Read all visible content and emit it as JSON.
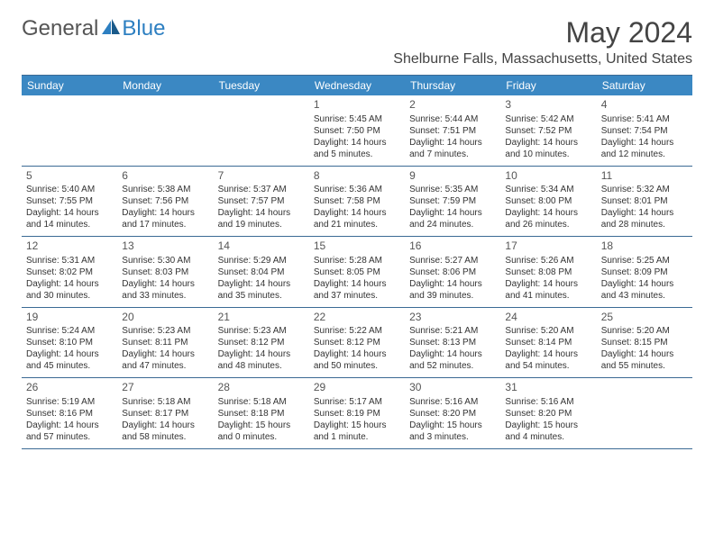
{
  "logo": {
    "text1": "General",
    "text2": "Blue"
  },
  "header": {
    "month_title": "May 2024",
    "location": "Shelburne Falls, Massachusetts, United States"
  },
  "colors": {
    "header_bg": "#3b88c3",
    "header_text": "#ffffff",
    "border": "#3b6a94",
    "body_text": "#333333",
    "logo_gray": "#555555",
    "logo_blue": "#2d7fc1"
  },
  "weekdays": [
    "Sunday",
    "Monday",
    "Tuesday",
    "Wednesday",
    "Thursday",
    "Friday",
    "Saturday"
  ],
  "weeks": [
    [
      null,
      null,
      null,
      {
        "num": "1",
        "sunrise": "5:45 AM",
        "sunset": "7:50 PM",
        "daylight1": "Daylight: 14 hours",
        "daylight2": "and 5 minutes."
      },
      {
        "num": "2",
        "sunrise": "5:44 AM",
        "sunset": "7:51 PM",
        "daylight1": "Daylight: 14 hours",
        "daylight2": "and 7 minutes."
      },
      {
        "num": "3",
        "sunrise": "5:42 AM",
        "sunset": "7:52 PM",
        "daylight1": "Daylight: 14 hours",
        "daylight2": "and 10 minutes."
      },
      {
        "num": "4",
        "sunrise": "5:41 AM",
        "sunset": "7:54 PM",
        "daylight1": "Daylight: 14 hours",
        "daylight2": "and 12 minutes."
      }
    ],
    [
      {
        "num": "5",
        "sunrise": "5:40 AM",
        "sunset": "7:55 PM",
        "daylight1": "Daylight: 14 hours",
        "daylight2": "and 14 minutes."
      },
      {
        "num": "6",
        "sunrise": "5:38 AM",
        "sunset": "7:56 PM",
        "daylight1": "Daylight: 14 hours",
        "daylight2": "and 17 minutes."
      },
      {
        "num": "7",
        "sunrise": "5:37 AM",
        "sunset": "7:57 PM",
        "daylight1": "Daylight: 14 hours",
        "daylight2": "and 19 minutes."
      },
      {
        "num": "8",
        "sunrise": "5:36 AM",
        "sunset": "7:58 PM",
        "daylight1": "Daylight: 14 hours",
        "daylight2": "and 21 minutes."
      },
      {
        "num": "9",
        "sunrise": "5:35 AM",
        "sunset": "7:59 PM",
        "daylight1": "Daylight: 14 hours",
        "daylight2": "and 24 minutes."
      },
      {
        "num": "10",
        "sunrise": "5:34 AM",
        "sunset": "8:00 PM",
        "daylight1": "Daylight: 14 hours",
        "daylight2": "and 26 minutes."
      },
      {
        "num": "11",
        "sunrise": "5:32 AM",
        "sunset": "8:01 PM",
        "daylight1": "Daylight: 14 hours",
        "daylight2": "and 28 minutes."
      }
    ],
    [
      {
        "num": "12",
        "sunrise": "5:31 AM",
        "sunset": "8:02 PM",
        "daylight1": "Daylight: 14 hours",
        "daylight2": "and 30 minutes."
      },
      {
        "num": "13",
        "sunrise": "5:30 AM",
        "sunset": "8:03 PM",
        "daylight1": "Daylight: 14 hours",
        "daylight2": "and 33 minutes."
      },
      {
        "num": "14",
        "sunrise": "5:29 AM",
        "sunset": "8:04 PM",
        "daylight1": "Daylight: 14 hours",
        "daylight2": "and 35 minutes."
      },
      {
        "num": "15",
        "sunrise": "5:28 AM",
        "sunset": "8:05 PM",
        "daylight1": "Daylight: 14 hours",
        "daylight2": "and 37 minutes."
      },
      {
        "num": "16",
        "sunrise": "5:27 AM",
        "sunset": "8:06 PM",
        "daylight1": "Daylight: 14 hours",
        "daylight2": "and 39 minutes."
      },
      {
        "num": "17",
        "sunrise": "5:26 AM",
        "sunset": "8:08 PM",
        "daylight1": "Daylight: 14 hours",
        "daylight2": "and 41 minutes."
      },
      {
        "num": "18",
        "sunrise": "5:25 AM",
        "sunset": "8:09 PM",
        "daylight1": "Daylight: 14 hours",
        "daylight2": "and 43 minutes."
      }
    ],
    [
      {
        "num": "19",
        "sunrise": "5:24 AM",
        "sunset": "8:10 PM",
        "daylight1": "Daylight: 14 hours",
        "daylight2": "and 45 minutes."
      },
      {
        "num": "20",
        "sunrise": "5:23 AM",
        "sunset": "8:11 PM",
        "daylight1": "Daylight: 14 hours",
        "daylight2": "and 47 minutes."
      },
      {
        "num": "21",
        "sunrise": "5:23 AM",
        "sunset": "8:12 PM",
        "daylight1": "Daylight: 14 hours",
        "daylight2": "and 48 minutes."
      },
      {
        "num": "22",
        "sunrise": "5:22 AM",
        "sunset": "8:12 PM",
        "daylight1": "Daylight: 14 hours",
        "daylight2": "and 50 minutes."
      },
      {
        "num": "23",
        "sunrise": "5:21 AM",
        "sunset": "8:13 PM",
        "daylight1": "Daylight: 14 hours",
        "daylight2": "and 52 minutes."
      },
      {
        "num": "24",
        "sunrise": "5:20 AM",
        "sunset": "8:14 PM",
        "daylight1": "Daylight: 14 hours",
        "daylight2": "and 54 minutes."
      },
      {
        "num": "25",
        "sunrise": "5:20 AM",
        "sunset": "8:15 PM",
        "daylight1": "Daylight: 14 hours",
        "daylight2": "and 55 minutes."
      }
    ],
    [
      {
        "num": "26",
        "sunrise": "5:19 AM",
        "sunset": "8:16 PM",
        "daylight1": "Daylight: 14 hours",
        "daylight2": "and 57 minutes."
      },
      {
        "num": "27",
        "sunrise": "5:18 AM",
        "sunset": "8:17 PM",
        "daylight1": "Daylight: 14 hours",
        "daylight2": "and 58 minutes."
      },
      {
        "num": "28",
        "sunrise": "5:18 AM",
        "sunset": "8:18 PM",
        "daylight1": "Daylight: 15 hours",
        "daylight2": "and 0 minutes."
      },
      {
        "num": "29",
        "sunrise": "5:17 AM",
        "sunset": "8:19 PM",
        "daylight1": "Daylight: 15 hours",
        "daylight2": "and 1 minute."
      },
      {
        "num": "30",
        "sunrise": "5:16 AM",
        "sunset": "8:20 PM",
        "daylight1": "Daylight: 15 hours",
        "daylight2": "and 3 minutes."
      },
      {
        "num": "31",
        "sunrise": "5:16 AM",
        "sunset": "8:20 PM",
        "daylight1": "Daylight: 15 hours",
        "daylight2": "and 4 minutes."
      },
      null
    ]
  ],
  "labels": {
    "sunrise_prefix": "Sunrise: ",
    "sunset_prefix": "Sunset: "
  }
}
